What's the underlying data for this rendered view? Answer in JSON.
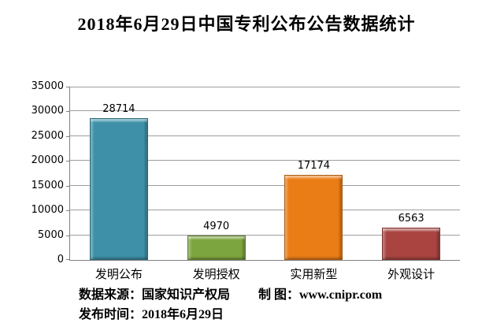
{
  "title": "2018年6月29日中国专利公布公告数据统计",
  "chart_data": {
    "type": "bar",
    "title": "2018年6月29日中国专利公布公告数据统计",
    "categories": [
      "发明公布",
      "发明授权",
      "实用新型",
      "外观设计"
    ],
    "values": [
      28714,
      4970,
      17174,
      6563
    ],
    "bar_colors": [
      "#3E90A8",
      "#7DA53F",
      "#EB7D17",
      "#A94441"
    ],
    "xlabel": "",
    "ylabel": "",
    "ylim": [
      0,
      35000
    ],
    "yticks": [
      0,
      5000,
      10000,
      15000,
      20000,
      25000,
      30000,
      35000
    ],
    "grid": true,
    "legend": "none",
    "value_labels_shown": true,
    "gridline_color": "#9e9e9e",
    "axis_color": "#808080"
  },
  "footer": {
    "source_label": "数据来源：国家知识产权局",
    "credit_label": "制 图：www.cnipr.com",
    "date_label": "发布时间：2018年6月29日"
  }
}
